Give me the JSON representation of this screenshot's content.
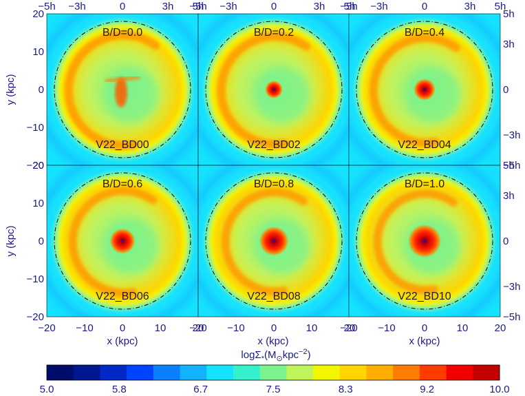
{
  "chart_data": {
    "type": "heatmap",
    "panels": [
      {
        "title": "B/D=0.0",
        "model": "V22_BD00",
        "bd": 0.0
      },
      {
        "title": "B/D=0.2",
        "model": "V22_BD02",
        "bd": 0.2
      },
      {
        "title": "B/D=0.4",
        "model": "V22_BD04",
        "bd": 0.4
      },
      {
        "title": "B/D=0.6",
        "model": "V22_BD06",
        "bd": 0.6
      },
      {
        "title": "B/D=0.8",
        "model": "V22_BD08",
        "bd": 0.8
      },
      {
        "title": "B/D=1.0",
        "model": "V22_BD10",
        "bd": 1.0
      }
    ],
    "xlabel": "x (kpc)",
    "ylabel": "y (kpc)",
    "xlim": [
      -20,
      20
    ],
    "ylim": [
      -20,
      20
    ],
    "x_ticks": [
      "-20",
      "-10",
      "0",
      "10",
      "20"
    ],
    "y_ticks": [
      "20",
      "10",
      "0",
      "-10",
      "-20"
    ],
    "h_ticks": [
      "-5h",
      "-3h",
      "0",
      "3h",
      "5h"
    ],
    "colorbar": {
      "label": "logΣ*(M☉kpc^-2)",
      "label_parts": [
        "logΣ",
        "*",
        "(M",
        "⊙",
        "kpc",
        "−2",
        ")"
      ],
      "range": [
        5.0,
        10.0
      ],
      "tick_labels": [
        "5.0",
        "5.8",
        "6.7",
        "7.5",
        "8.3",
        "9.2",
        "10.0"
      ],
      "colors": [
        "#000c6a",
        "#00188f",
        "#0028c4",
        "#0044ff",
        "#0a7fff",
        "#12b2ff",
        "#14e2ff",
        "#34f0cc",
        "#7af28e",
        "#bff55a",
        "#f2f600",
        "#ffd400",
        "#ffae00",
        "#ff7c00",
        "#ff3c00",
        "#f20000",
        "#c30000"
      ]
    }
  }
}
